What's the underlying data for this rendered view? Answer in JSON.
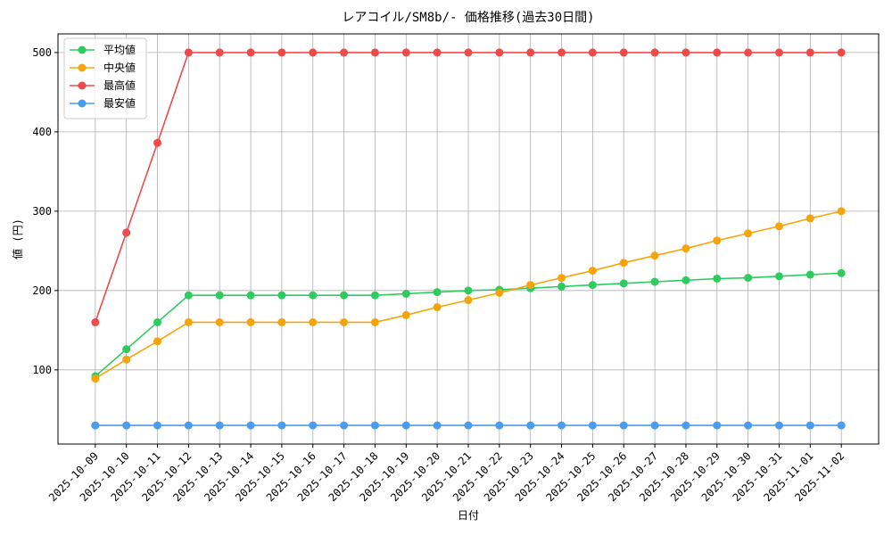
{
  "chart_data": {
    "type": "line",
    "title": "レアコイル/SM8b/- 価格推移(過去30日間)",
    "x_label": "日付",
    "y_label": "値 (円)",
    "categories": [
      "2025-10-09",
      "2025-10-10",
      "2025-10-11",
      "2025-10-12",
      "2025-10-13",
      "2025-10-14",
      "2025-10-15",
      "2025-10-16",
      "2025-10-17",
      "2025-10-18",
      "2025-10-19",
      "2025-10-20",
      "2025-10-21",
      "2025-10-22",
      "2025-10-23",
      "2025-10-24",
      "2025-10-25",
      "2025-10-26",
      "2025-10-27",
      "2025-10-28",
      "2025-10-29",
      "2025-10-30",
      "2025-10-31",
      "2025-11-01",
      "2025-11-02"
    ],
    "series": [
      {
        "name": "平均値",
        "color": "#2ecc5f",
        "values": [
          92,
          126,
          160,
          194,
          194,
          194,
          194,
          194,
          194,
          194,
          196,
          198,
          200,
          201,
          203,
          205,
          207,
          209,
          211,
          213,
          215,
          216,
          218,
          220,
          222
        ]
      },
      {
        "name": "中央値",
        "color": "#f5a50a",
        "values": [
          89,
          113,
          136,
          160,
          160,
          160,
          160,
          160,
          160,
          160,
          169,
          179,
          188,
          197,
          207,
          216,
          225,
          235,
          244,
          253,
          263,
          272,
          281,
          291,
          300
        ]
      },
      {
        "name": "最高値",
        "color": "#ef4a4a",
        "values": [
          160,
          273,
          386,
          500,
          500,
          500,
          500,
          500,
          500,
          500,
          500,
          500,
          500,
          500,
          500,
          500,
          500,
          500,
          500,
          500,
          500,
          500,
          500,
          500,
          500
        ]
      },
      {
        "name": "最安値",
        "color": "#4a9cf0",
        "values": [
          30,
          30,
          30,
          30,
          30,
          30,
          30,
          30,
          30,
          30,
          30,
          30,
          30,
          30,
          30,
          30,
          30,
          30,
          30,
          30,
          30,
          30,
          30,
          30,
          30
        ]
      }
    ],
    "ylim": [
      6.5,
      523.5
    ],
    "yticks": [
      100,
      200,
      300,
      400,
      500
    ],
    "grid": true,
    "legend": "upper-left"
  }
}
